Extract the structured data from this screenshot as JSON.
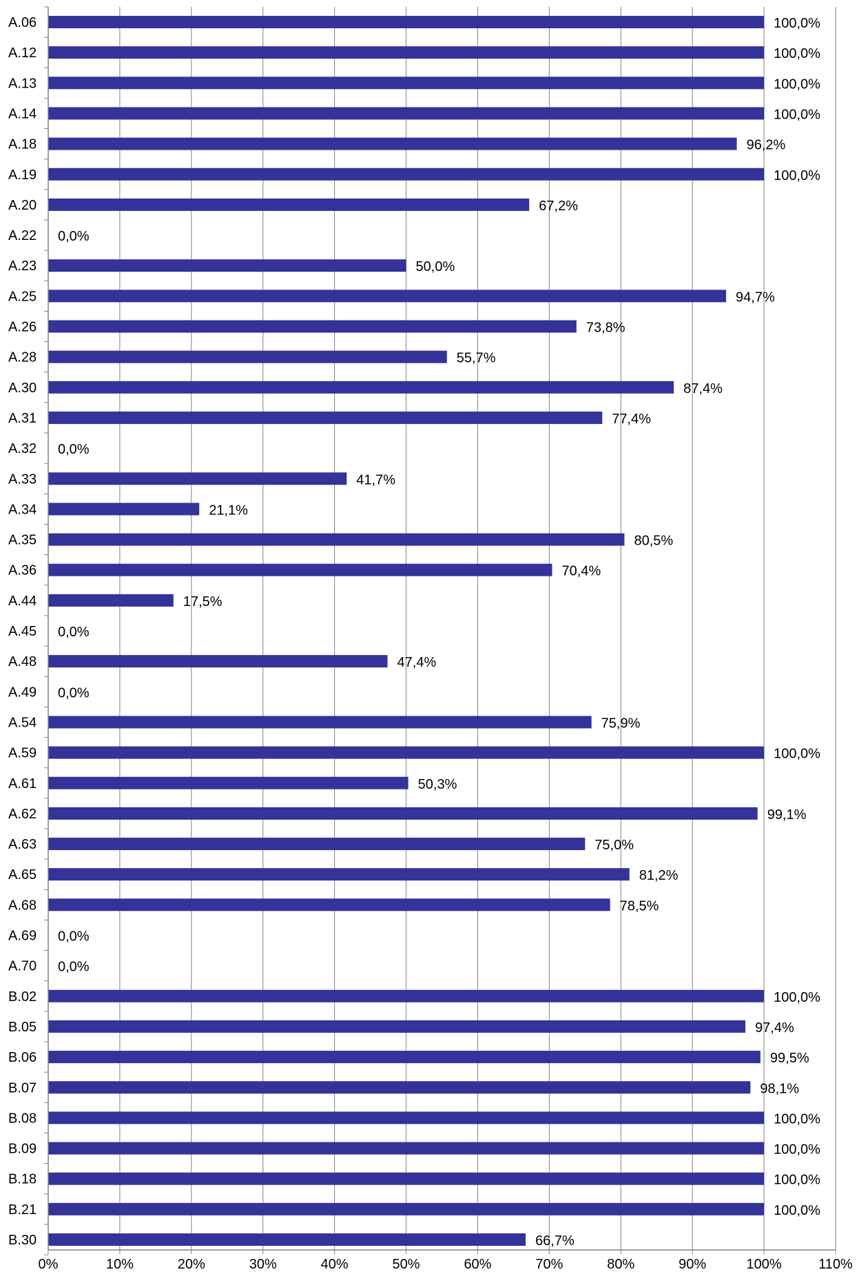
{
  "chart_data": {
    "type": "bar",
    "orientation": "horizontal",
    "categories": [
      "A.06",
      "A.12",
      "A.13",
      "A.14",
      "A.18",
      "A.19",
      "A.20",
      "A.22",
      "A.23",
      "A.25",
      "A.26",
      "A.28",
      "A.30",
      "A.31",
      "A.32",
      "A.33",
      "A.34",
      "A.35",
      "A.36",
      "A.44",
      "A.45",
      "A.48",
      "A.49",
      "A.54",
      "A.59",
      "A.61",
      "A.62",
      "A.63",
      "A.65",
      "A.68",
      "A.69",
      "A.70",
      "B.02",
      "B.05",
      "B.06",
      "B.07",
      "B.08",
      "B.09",
      "B.18",
      "B.21",
      "B.30"
    ],
    "values": [
      100.0,
      100.0,
      100.0,
      100.0,
      96.2,
      100.0,
      67.2,
      0.0,
      50.0,
      94.7,
      73.8,
      55.7,
      87.4,
      77.4,
      0.0,
      41.7,
      21.1,
      80.5,
      70.4,
      17.5,
      0.0,
      47.4,
      0.0,
      75.9,
      100.0,
      50.3,
      99.1,
      75.0,
      81.2,
      78.5,
      0.0,
      0.0,
      100.0,
      97.4,
      99.5,
      98.1,
      100.0,
      100.0,
      100.0,
      100.0,
      66.7
    ],
    "value_labels": [
      "100,0%",
      "100,0%",
      "100,0%",
      "100,0%",
      "96,2%",
      "100,0%",
      "67,2%",
      "0,0%",
      "50,0%",
      "94,7%",
      "73,8%",
      "55,7%",
      "87,4%",
      "77,4%",
      "0,0%",
      "41,7%",
      "21,1%",
      "80,5%",
      "70,4%",
      "17,5%",
      "0,0%",
      "47,4%",
      "0,0%",
      "75,9%",
      "100,0%",
      "50,3%",
      "99,1%",
      "75,0%",
      "81,2%",
      "78,5%",
      "0,0%",
      "0,0%",
      "100,0%",
      "97,4%",
      "99,5%",
      "98,1%",
      "100,0%",
      "100,0%",
      "100,0%",
      "100,0%",
      "66,7%"
    ],
    "xlim": [
      0,
      110
    ],
    "ticks": [
      0,
      10,
      20,
      30,
      40,
      50,
      60,
      70,
      80,
      90,
      100,
      110
    ],
    "tick_labels": [
      "0%",
      "10%",
      "20%",
      "30%",
      "40%",
      "50%",
      "60%",
      "70%",
      "80%",
      "90%",
      "100%",
      "110%"
    ],
    "grid": true,
    "title": "",
    "xlabel": "",
    "ylabel": "",
    "colors": {
      "bar": "#333399",
      "grid": "#808080",
      "axis": "#808080",
      "text": "#000000"
    }
  }
}
